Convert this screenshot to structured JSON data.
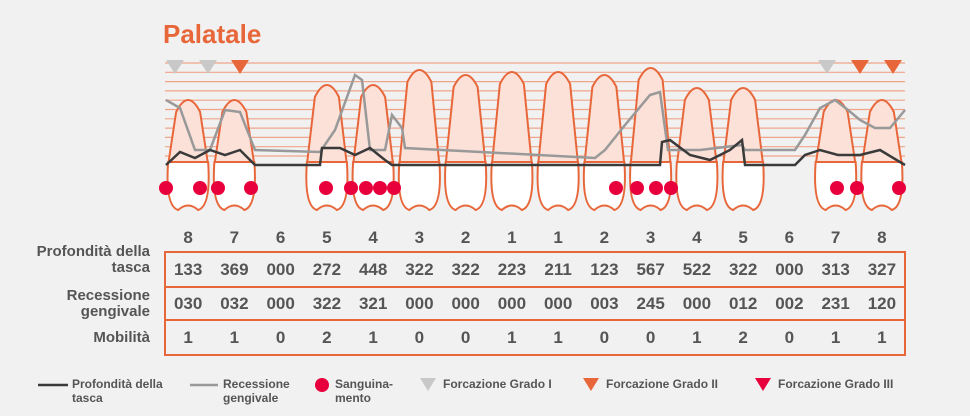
{
  "title": "Palatale",
  "teeth": [
    "8",
    "7",
    "6",
    "5",
    "4",
    "3",
    "2",
    "1",
    "1",
    "2",
    "3",
    "4",
    "5",
    "6",
    "7",
    "8"
  ],
  "table": {
    "rows": [
      {
        "label": "Profondità della tasca",
        "values": [
          "133",
          "369",
          "000",
          "272",
          "448",
          "322",
          "322",
          "223",
          "211",
          "123",
          "567",
          "522",
          "322",
          "000",
          "313",
          "327"
        ]
      },
      {
        "label": "Recessione gengivale",
        "values": [
          "030",
          "032",
          "000",
          "322",
          "321",
          "000",
          "000",
          "000",
          "000",
          "003",
          "245",
          "000",
          "012",
          "002",
          "231",
          "120"
        ]
      },
      {
        "label": "Mobilità",
        "values": [
          1,
          1,
          0,
          2,
          1,
          0,
          0,
          1,
          1,
          0,
          0,
          1,
          2,
          0,
          1,
          1
        ]
      }
    ]
  },
  "legend": [
    "Profondità della tasca",
    "Recessione gengivale",
    "Sanguina-\nmento",
    "Forcazione Grado I",
    "Forcazione Grado II",
    "Forcazione Grado III"
  ]
}
